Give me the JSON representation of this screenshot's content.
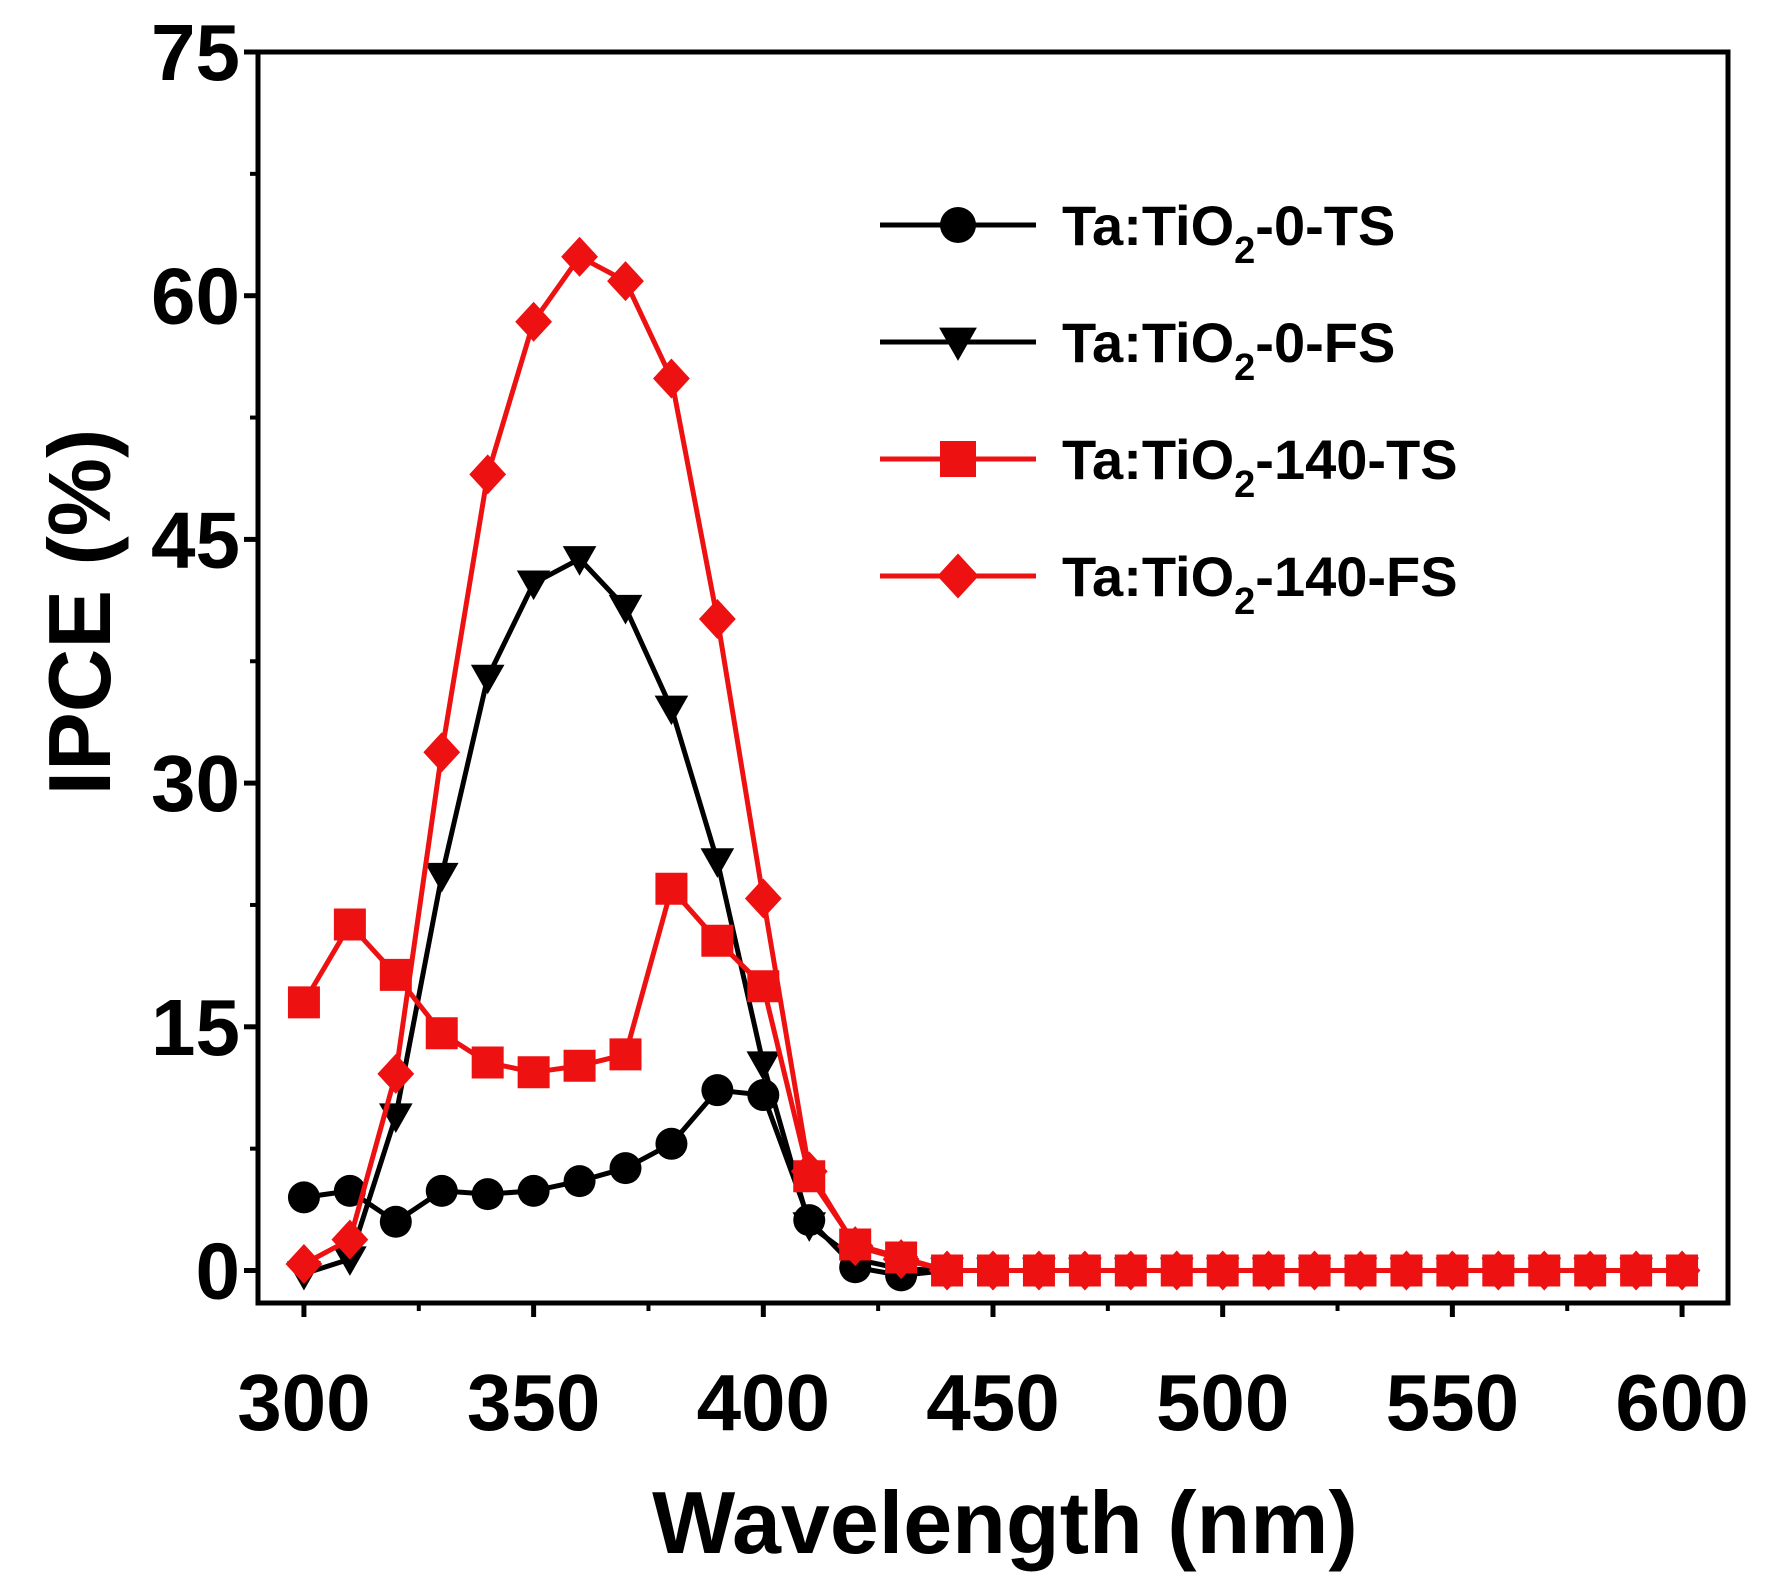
{
  "chart_data": {
    "type": "line",
    "title": "",
    "xlabel": "Wavelength (nm)",
    "ylabel": "IPCE (%)",
    "xlim": [
      290,
      610
    ],
    "ylim": [
      -2,
      75
    ],
    "xticks": [
      300,
      350,
      400,
      450,
      500,
      550,
      600
    ],
    "yticks": [
      0,
      15,
      30,
      45,
      60,
      75
    ],
    "xtick_labels": [
      "300",
      "350",
      "400",
      "450",
      "500",
      "550",
      "600"
    ],
    "ytick_labels": [
      "0",
      "15",
      "30",
      "45",
      "60",
      "75"
    ],
    "legend_position": "top-right",
    "x": [
      300,
      310,
      320,
      330,
      340,
      350,
      360,
      370,
      380,
      390,
      400,
      410,
      420,
      430,
      440,
      450,
      460,
      470,
      480,
      490,
      500,
      510,
      520,
      530,
      540,
      550,
      560,
      570,
      580,
      590,
      600
    ],
    "series": [
      {
        "name": "Ta:TiO2-0-TS",
        "legend_main": "Ta:TiO",
        "legend_sub": "2",
        "legend_suffix": "-0-TS",
        "color": "#000000",
        "marker": "circle",
        "values": [
          4.5,
          4.9,
          3.0,
          4.9,
          4.7,
          4.9,
          5.5,
          6.3,
          7.8,
          11.1,
          10.8,
          3.1,
          0.2,
          -0.3,
          0,
          0,
          0,
          0,
          0,
          0,
          0,
          0,
          0,
          0,
          0,
          0,
          0,
          0,
          0,
          0,
          0
        ]
      },
      {
        "name": "Ta:TiO2-0-FS",
        "legend_main": "Ta:TiO",
        "legend_sub": "2",
        "legend_suffix": "-0-FS",
        "color": "#000000",
        "marker": "triangle-down",
        "values": [
          -0.2,
          0.7,
          9.5,
          24.3,
          36.5,
          42.3,
          43.8,
          40.8,
          34.6,
          25.2,
          12.7,
          2.8,
          0.7,
          0.1,
          0,
          0,
          0,
          0,
          0,
          0,
          0,
          0,
          0,
          0,
          0,
          0,
          0,
          0,
          0,
          0,
          0
        ]
      },
      {
        "name": "Ta:TiO2-140-TS",
        "legend_main": "Ta:TiO",
        "legend_sub": "2",
        "legend_suffix": "-140-TS",
        "color": "#ee1111",
        "marker": "square",
        "values": [
          16.5,
          21.3,
          18.2,
          14.6,
          12.8,
          12.2,
          12.6,
          13.3,
          23.5,
          20.3,
          17.5,
          5.8,
          1.6,
          0.8,
          0,
          0,
          0,
          0,
          0,
          0,
          0,
          0,
          0,
          0,
          0,
          0,
          0,
          0,
          0,
          0,
          0
        ]
      },
      {
        "name": "Ta:TiO2-140-FS",
        "legend_main": "Ta:TiO",
        "legend_sub": "2",
        "legend_suffix": "-140-FS",
        "color": "#ee1111",
        "marker": "diamond",
        "values": [
          0.4,
          1.9,
          12.1,
          31.9,
          49.0,
          58.4,
          62.4,
          60.9,
          54.9,
          40.1,
          22.9,
          6.1,
          1.5,
          0.7,
          0,
          0,
          0,
          0,
          0,
          0,
          0,
          0,
          0,
          0,
          0,
          0,
          0,
          0,
          0,
          0,
          0
        ]
      }
    ]
  }
}
